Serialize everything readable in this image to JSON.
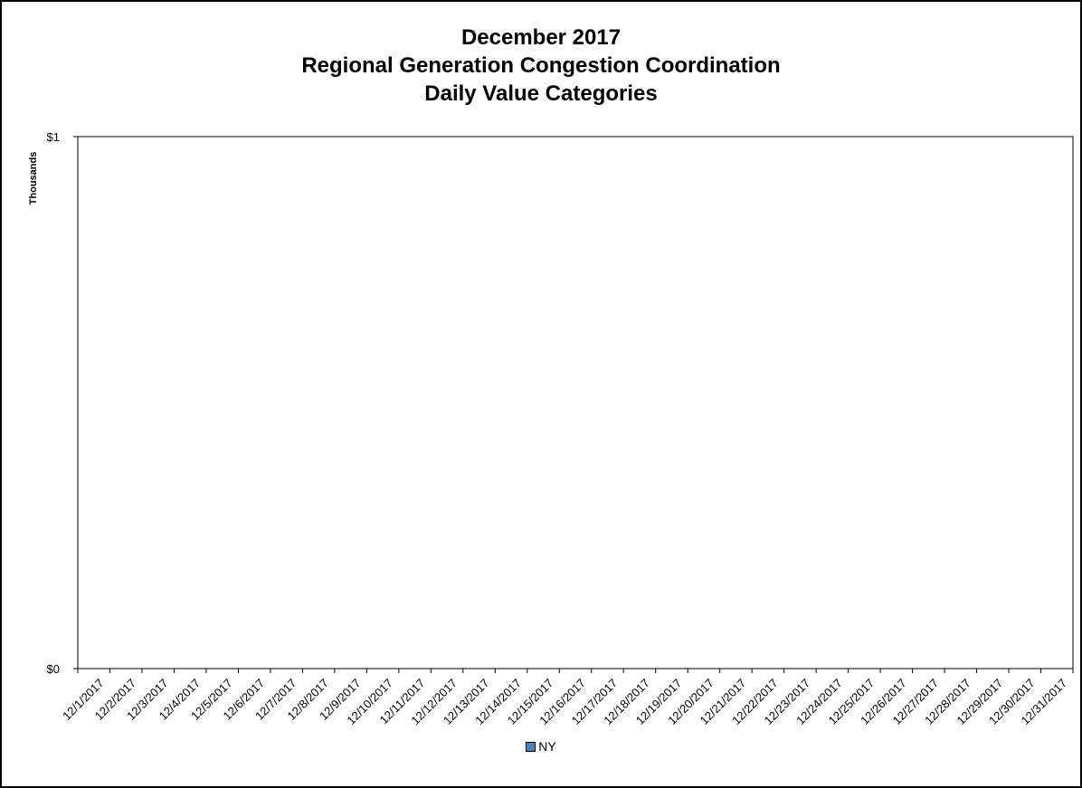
{
  "chart_data": {
    "type": "bar",
    "title": [
      "December 2017",
      "Regional Generation Congestion Coordination",
      "Daily Value Categories"
    ],
    "ylabel": "Thousands",
    "xlabel": "",
    "ylim": [
      0,
      1
    ],
    "y_ticks": [
      "$0",
      "$1"
    ],
    "y_tick_values": [
      0,
      1
    ],
    "categories": [
      "12/1/2017",
      "12/2/2017",
      "12/3/2017",
      "12/4/2017",
      "12/5/2017",
      "12/6/2017",
      "12/7/2017",
      "12/8/2017",
      "12/9/2017",
      "12/10/2017",
      "12/11/2017",
      "12/12/2017",
      "12/13/2017",
      "12/14/2017",
      "12/15/2017",
      "12/16/2017",
      "12/17/2017",
      "12/18/2017",
      "12/19/2017",
      "12/20/2017",
      "12/21/2017",
      "12/22/2017",
      "12/23/2017",
      "12/24/2017",
      "12/25/2017",
      "12/26/2017",
      "12/27/2017",
      "12/28/2017",
      "12/29/2017",
      "12/30/2017",
      "12/31/2017"
    ],
    "series": [
      {
        "name": "NY",
        "color": "#4F81BD",
        "values": [
          0,
          0,
          0,
          0,
          0,
          0,
          0,
          0,
          0,
          0,
          0,
          0,
          0,
          0,
          0,
          0,
          0,
          0,
          0,
          0,
          0,
          0,
          0,
          0,
          0,
          0,
          0,
          0,
          0,
          0,
          0
        ]
      }
    ],
    "grid": false,
    "legend_position": "bottom"
  }
}
